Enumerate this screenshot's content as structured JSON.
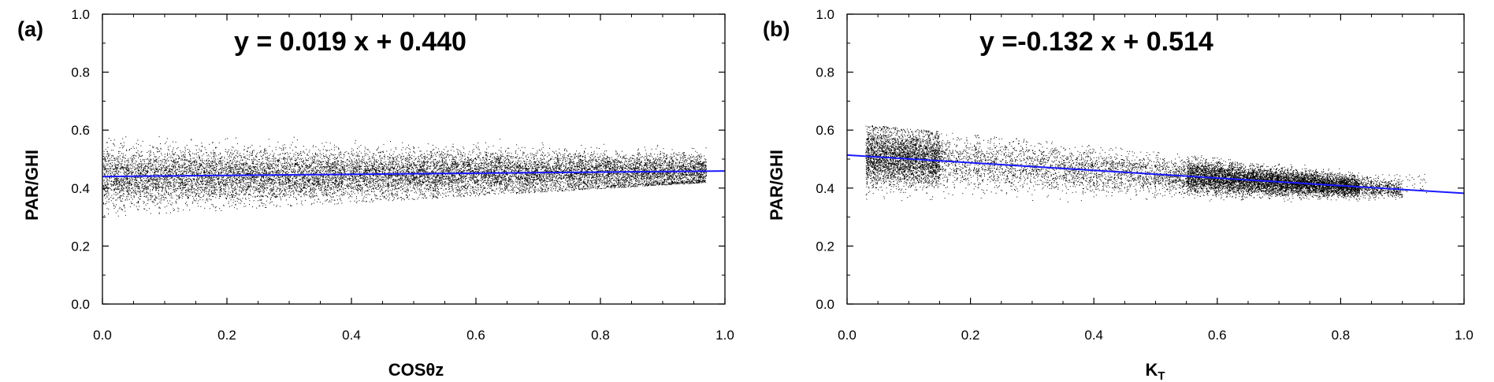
{
  "chart_data": [
    {
      "type": "scatter",
      "panel_label": "(a)",
      "annotation": "y = 0.019 x +  0.440",
      "xlabel": "COSθz",
      "xlabel_sub": "",
      "ylabel": "PAR/GHI",
      "xlim": [
        0.0,
        1.0
      ],
      "ylim": [
        0.0,
        1.0
      ],
      "xticks": [
        "0.0",
        "0.2",
        "0.4",
        "0.6",
        "0.8",
        "1.0"
      ],
      "yticks": [
        "0.0",
        "0.2",
        "0.4",
        "0.6",
        "0.8",
        "1.0"
      ],
      "grid": false,
      "point_color": "#000000",
      "fit_color": "#1a1aff",
      "fit": {
        "slope": 0.019,
        "intercept": 0.44,
        "x_range": [
          0.0,
          1.0
        ]
      },
      "cloud": {
        "x_range": [
          0.0,
          0.97
        ],
        "y_min": [
          0.3,
          0.42
        ],
        "y_max": [
          0.61,
          0.61
        ],
        "n_points": 14000
      }
    },
    {
      "type": "scatter",
      "panel_label": "(b)",
      "annotation": "y =-0.132 x +  0.514",
      "xlabel": "K",
      "xlabel_sub": "T",
      "ylabel": "PAR/GHI",
      "xlim": [
        0.0,
        1.0
      ],
      "ylim": [
        0.0,
        1.0
      ],
      "xticks": [
        "0.0",
        "0.2",
        "0.4",
        "0.6",
        "0.8",
        "1.0"
      ],
      "yticks": [
        "0.0",
        "0.2",
        "0.4",
        "0.6",
        "0.8",
        "1.0"
      ],
      "grid": false,
      "point_color": "#000000",
      "fit_color": "#1a1aff",
      "fit": {
        "slope": -0.132,
        "intercept": 0.514,
        "x_range": [
          0.0,
          1.0
        ]
      },
      "cloud": {
        "x_range": [
          0.03,
          0.9
        ],
        "y_min": [
          0.3,
          0.36
        ],
        "y_max": [
          0.62,
          0.45
        ],
        "n_points": 14000
      }
    }
  ]
}
